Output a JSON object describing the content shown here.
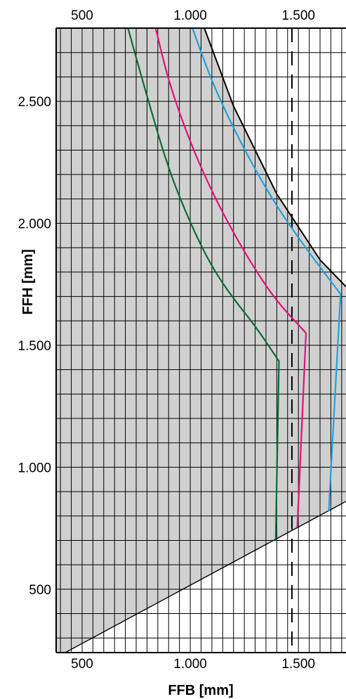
{
  "chart_data": {
    "type": "line",
    "xlabel": "FFB [mm]",
    "ylabel": "FFH [mm]",
    "xlim": [
      380,
      1720
    ],
    "ylim": [
      240,
      2800
    ],
    "x_ticks": [
      500,
      1000,
      1500
    ],
    "x_tick_labels": [
      "500",
      "1.000",
      "1.500"
    ],
    "y_ticks": [
      500,
      1000,
      1500,
      2000,
      2500
    ],
    "y_tick_labels": [
      "500",
      "1.000",
      "1.500",
      "2.000",
      "2.500"
    ],
    "grid": true,
    "shaded_region": {
      "fill": "#d0d0d0",
      "lower_boundary": [
        [
          380,
          220
        ],
        [
          1720,
          860
        ]
      ],
      "upper_boundary_curve": [
        [
          1065,
          2800
        ],
        [
          1200,
          2480
        ],
        [
          1400,
          2120
        ],
        [
          1600,
          1850
        ],
        [
          1720,
          1740
        ]
      ],
      "upper_boundary_color": "#000000"
    },
    "reference_line": {
      "x": 1470,
      "style": "dashed",
      "color": "#000000"
    },
    "series": [
      {
        "color": "#0d6b35",
        "values": [
          [
            712,
            2800
          ],
          [
            800,
            2520
          ],
          [
            900,
            2220
          ],
          [
            1000,
            2000
          ],
          [
            1100,
            1820
          ],
          [
            1200,
            1690
          ],
          [
            1300,
            1580
          ],
          [
            1410,
            1435
          ],
          [
            1395,
            700
          ]
        ]
      },
      {
        "color": "#e2127a",
        "values": [
          [
            840,
            2800
          ],
          [
            900,
            2580
          ],
          [
            1000,
            2330
          ],
          [
            1100,
            2130
          ],
          [
            1200,
            1960
          ],
          [
            1300,
            1810
          ],
          [
            1400,
            1680
          ],
          [
            1535,
            1550
          ],
          [
            1495,
            755
          ]
        ]
      },
      {
        "color": "#1fa2dc",
        "values": [
          [
            1010,
            2800
          ],
          [
            1100,
            2580
          ],
          [
            1200,
            2390
          ],
          [
            1300,
            2220
          ],
          [
            1400,
            2070
          ],
          [
            1500,
            1940
          ],
          [
            1600,
            1820
          ],
          [
            1695,
            1710
          ],
          [
            1640,
            820
          ]
        ]
      }
    ]
  }
}
